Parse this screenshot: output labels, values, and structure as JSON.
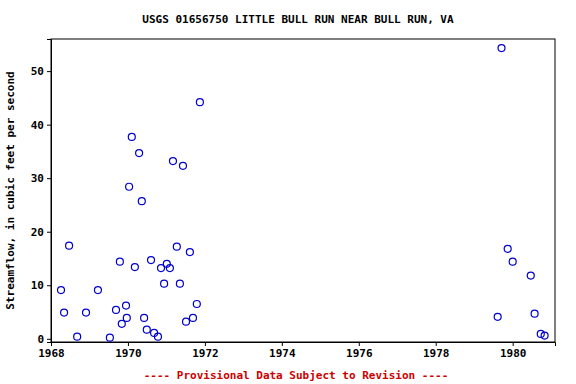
{
  "chart_data": {
    "type": "scatter",
    "title": "USGS 01656750 LITTLE BULL RUN NEAR BULL RUN, VA",
    "y_label": "Streamflow, in cubic feet per second",
    "footer": "---- Provisional Data Subject to Revision ----",
    "x": [
      1968.26,
      1968.34,
      1968.47,
      1968.68,
      1968.91,
      1969.22,
      1969.53,
      1969.69,
      1969.79,
      1969.84,
      1969.95,
      1969.97,
      1970.03,
      1970.1,
      1970.18,
      1970.29,
      1970.36,
      1970.42,
      1970.49,
      1970.6,
      1970.68,
      1970.78,
      1970.86,
      1970.94,
      1971.01,
      1971.09,
      1971.17,
      1971.27,
      1971.35,
      1971.43,
      1971.51,
      1971.61,
      1971.69,
      1971.79,
      1971.87,
      1979.61,
      1979.71,
      1979.87,
      1980.0,
      1980.47,
      1980.57,
      1980.73,
      1980.83
    ],
    "values": [
      9.1,
      4.9,
      17.4,
      0.4,
      4.9,
      9.1,
      0.2,
      5.4,
      14.4,
      2.8,
      6.2,
      3.9,
      28.4,
      37.7,
      13.4,
      34.7,
      25.7,
      3.9,
      1.7,
      14.7,
      1.1,
      0.4,
      13.2,
      10.3,
      14.0,
      13.2,
      33.2,
      17.2,
      10.3,
      32.3,
      3.2,
      16.2,
      3.9,
      6.5,
      44.2,
      4.1,
      54.3,
      16.8,
      14.4,
      11.8,
      4.7,
      0.9,
      0.6
    ],
    "color": "#0000cc",
    "marker": "circle-open",
    "xlim": [
      1968,
      1981.1
    ],
    "xticks": [
      1968,
      1970,
      1972,
      1974,
      1976,
      1978,
      1980
    ],
    "ylim": [
      -0.6,
      56
    ],
    "yticks": [
      0,
      10,
      20,
      30,
      40,
      50
    ],
    "grid": false
  }
}
